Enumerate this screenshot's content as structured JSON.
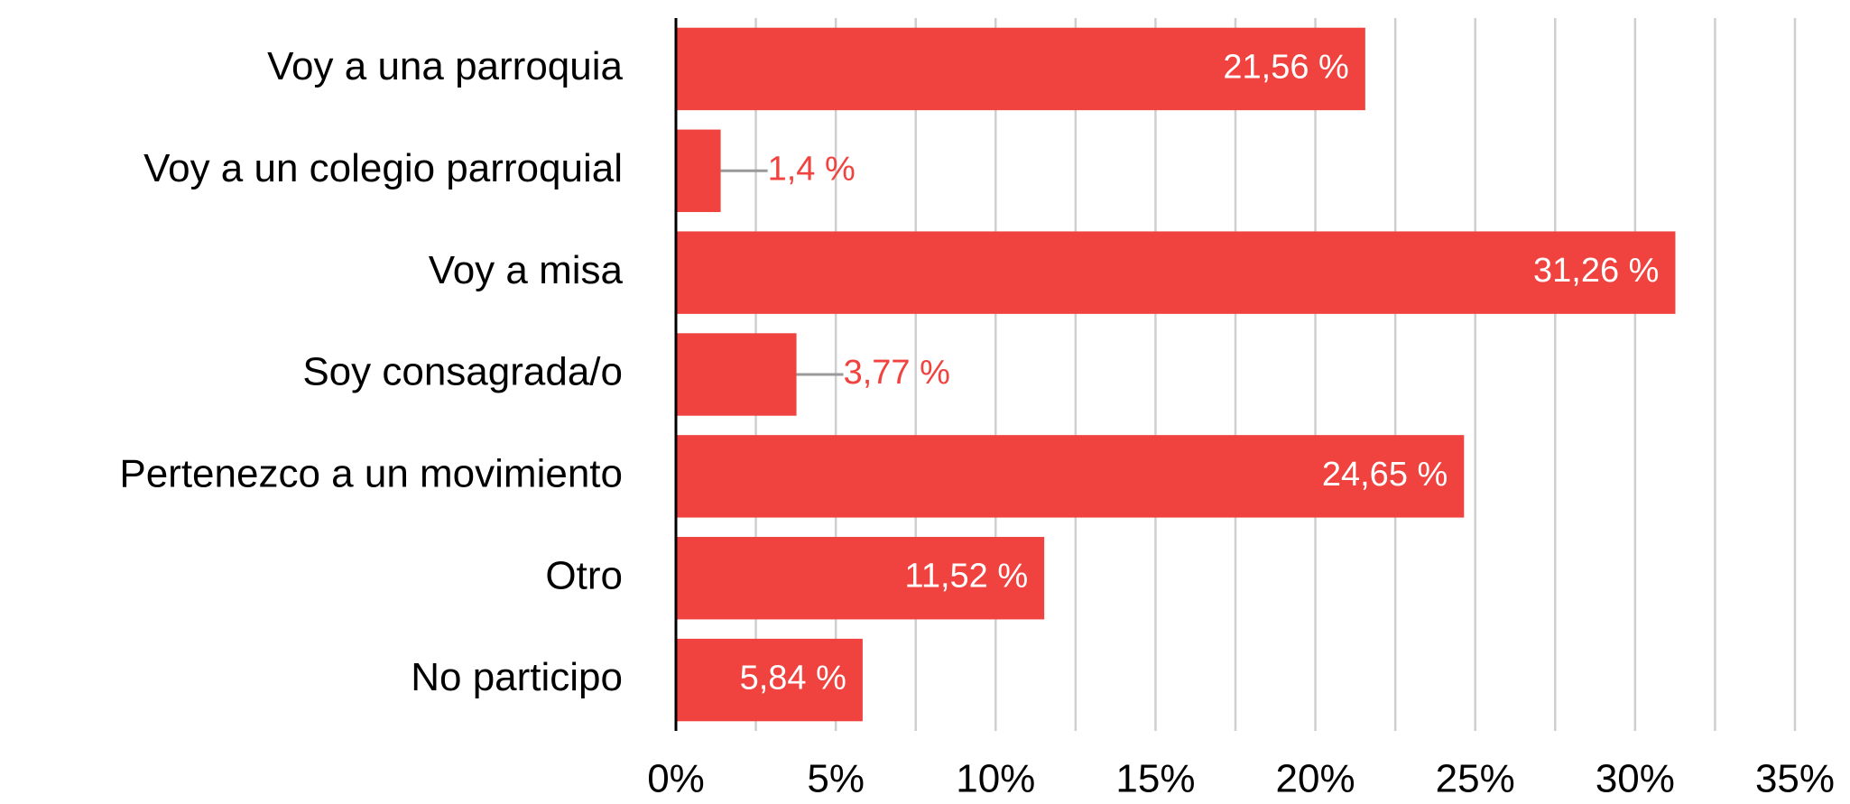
{
  "chart_data": {
    "type": "barh",
    "categories": [
      "Voy a una parroquia",
      "Voy a un colegio parroquial",
      "Voy a misa",
      "Soy consagrada/o",
      "Pertenezco a un movimiento",
      "Otro",
      "No participo"
    ],
    "values": [
      21.56,
      1.4,
      31.26,
      3.77,
      24.65,
      11.52,
      5.84
    ],
    "value_labels": [
      "21,56 %",
      "1,4 %",
      "31,26 %",
      "3,77 %",
      "24,65 %",
      "11,52 %",
      "5,84 %"
    ],
    "color": "#f0433f",
    "xlim": [
      0,
      35
    ],
    "xticks": [
      {
        "value": 0,
        "label": "0%"
      },
      {
        "value": 5,
        "label": "5%"
      },
      {
        "value": 10,
        "label": "10%"
      },
      {
        "value": 15,
        "label": "15%"
      },
      {
        "value": 20,
        "label": "20%"
      },
      {
        "value": 25,
        "label": "25%"
      },
      {
        "value": 30,
        "label": "30%"
      },
      {
        "value": 35,
        "label": "35%"
      }
    ],
    "grid": true
  }
}
